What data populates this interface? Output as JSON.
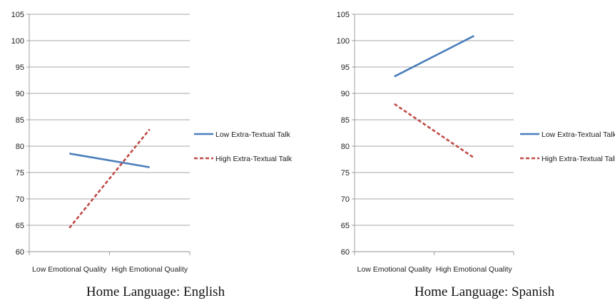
{
  "chart_data": [
    {
      "type": "line",
      "title": "",
      "caption": "Home Language: English",
      "categories": [
        "Low Emotional Quality",
        "High Emotional Quality"
      ],
      "ylim": [
        60,
        105
      ],
      "yticks": [
        60,
        65,
        70,
        75,
        80,
        85,
        90,
        95,
        100,
        105
      ],
      "grid": true,
      "legend_position": "right",
      "series": [
        {
          "name": "Low Extra-Textual Talk",
          "values": [
            78.6,
            76.0
          ],
          "color": "#4a7ebb",
          "dash": "solid"
        },
        {
          "name": "High Extra-Textual Talk",
          "values": [
            64.5,
            83.2
          ],
          "color": "#be4b48",
          "dash": "dashed"
        }
      ]
    },
    {
      "type": "line",
      "title": "",
      "caption": "Home Language: Spanish",
      "categories": [
        "Low Emotional Quality",
        "High Emotional Quality"
      ],
      "ylim": [
        60,
        105
      ],
      "yticks": [
        60,
        65,
        70,
        75,
        80,
        85,
        90,
        95,
        100,
        105
      ],
      "grid": true,
      "legend_position": "right",
      "series": [
        {
          "name": "Low Extra-Textual Talk",
          "values": [
            93.2,
            100.9
          ],
          "color": "#4a7ebb",
          "dash": "solid"
        },
        {
          "name": "High Extra-Textual Talk",
          "values": [
            88.0,
            77.8
          ],
          "color": "#be4b48",
          "dash": "dashed"
        }
      ]
    }
  ]
}
